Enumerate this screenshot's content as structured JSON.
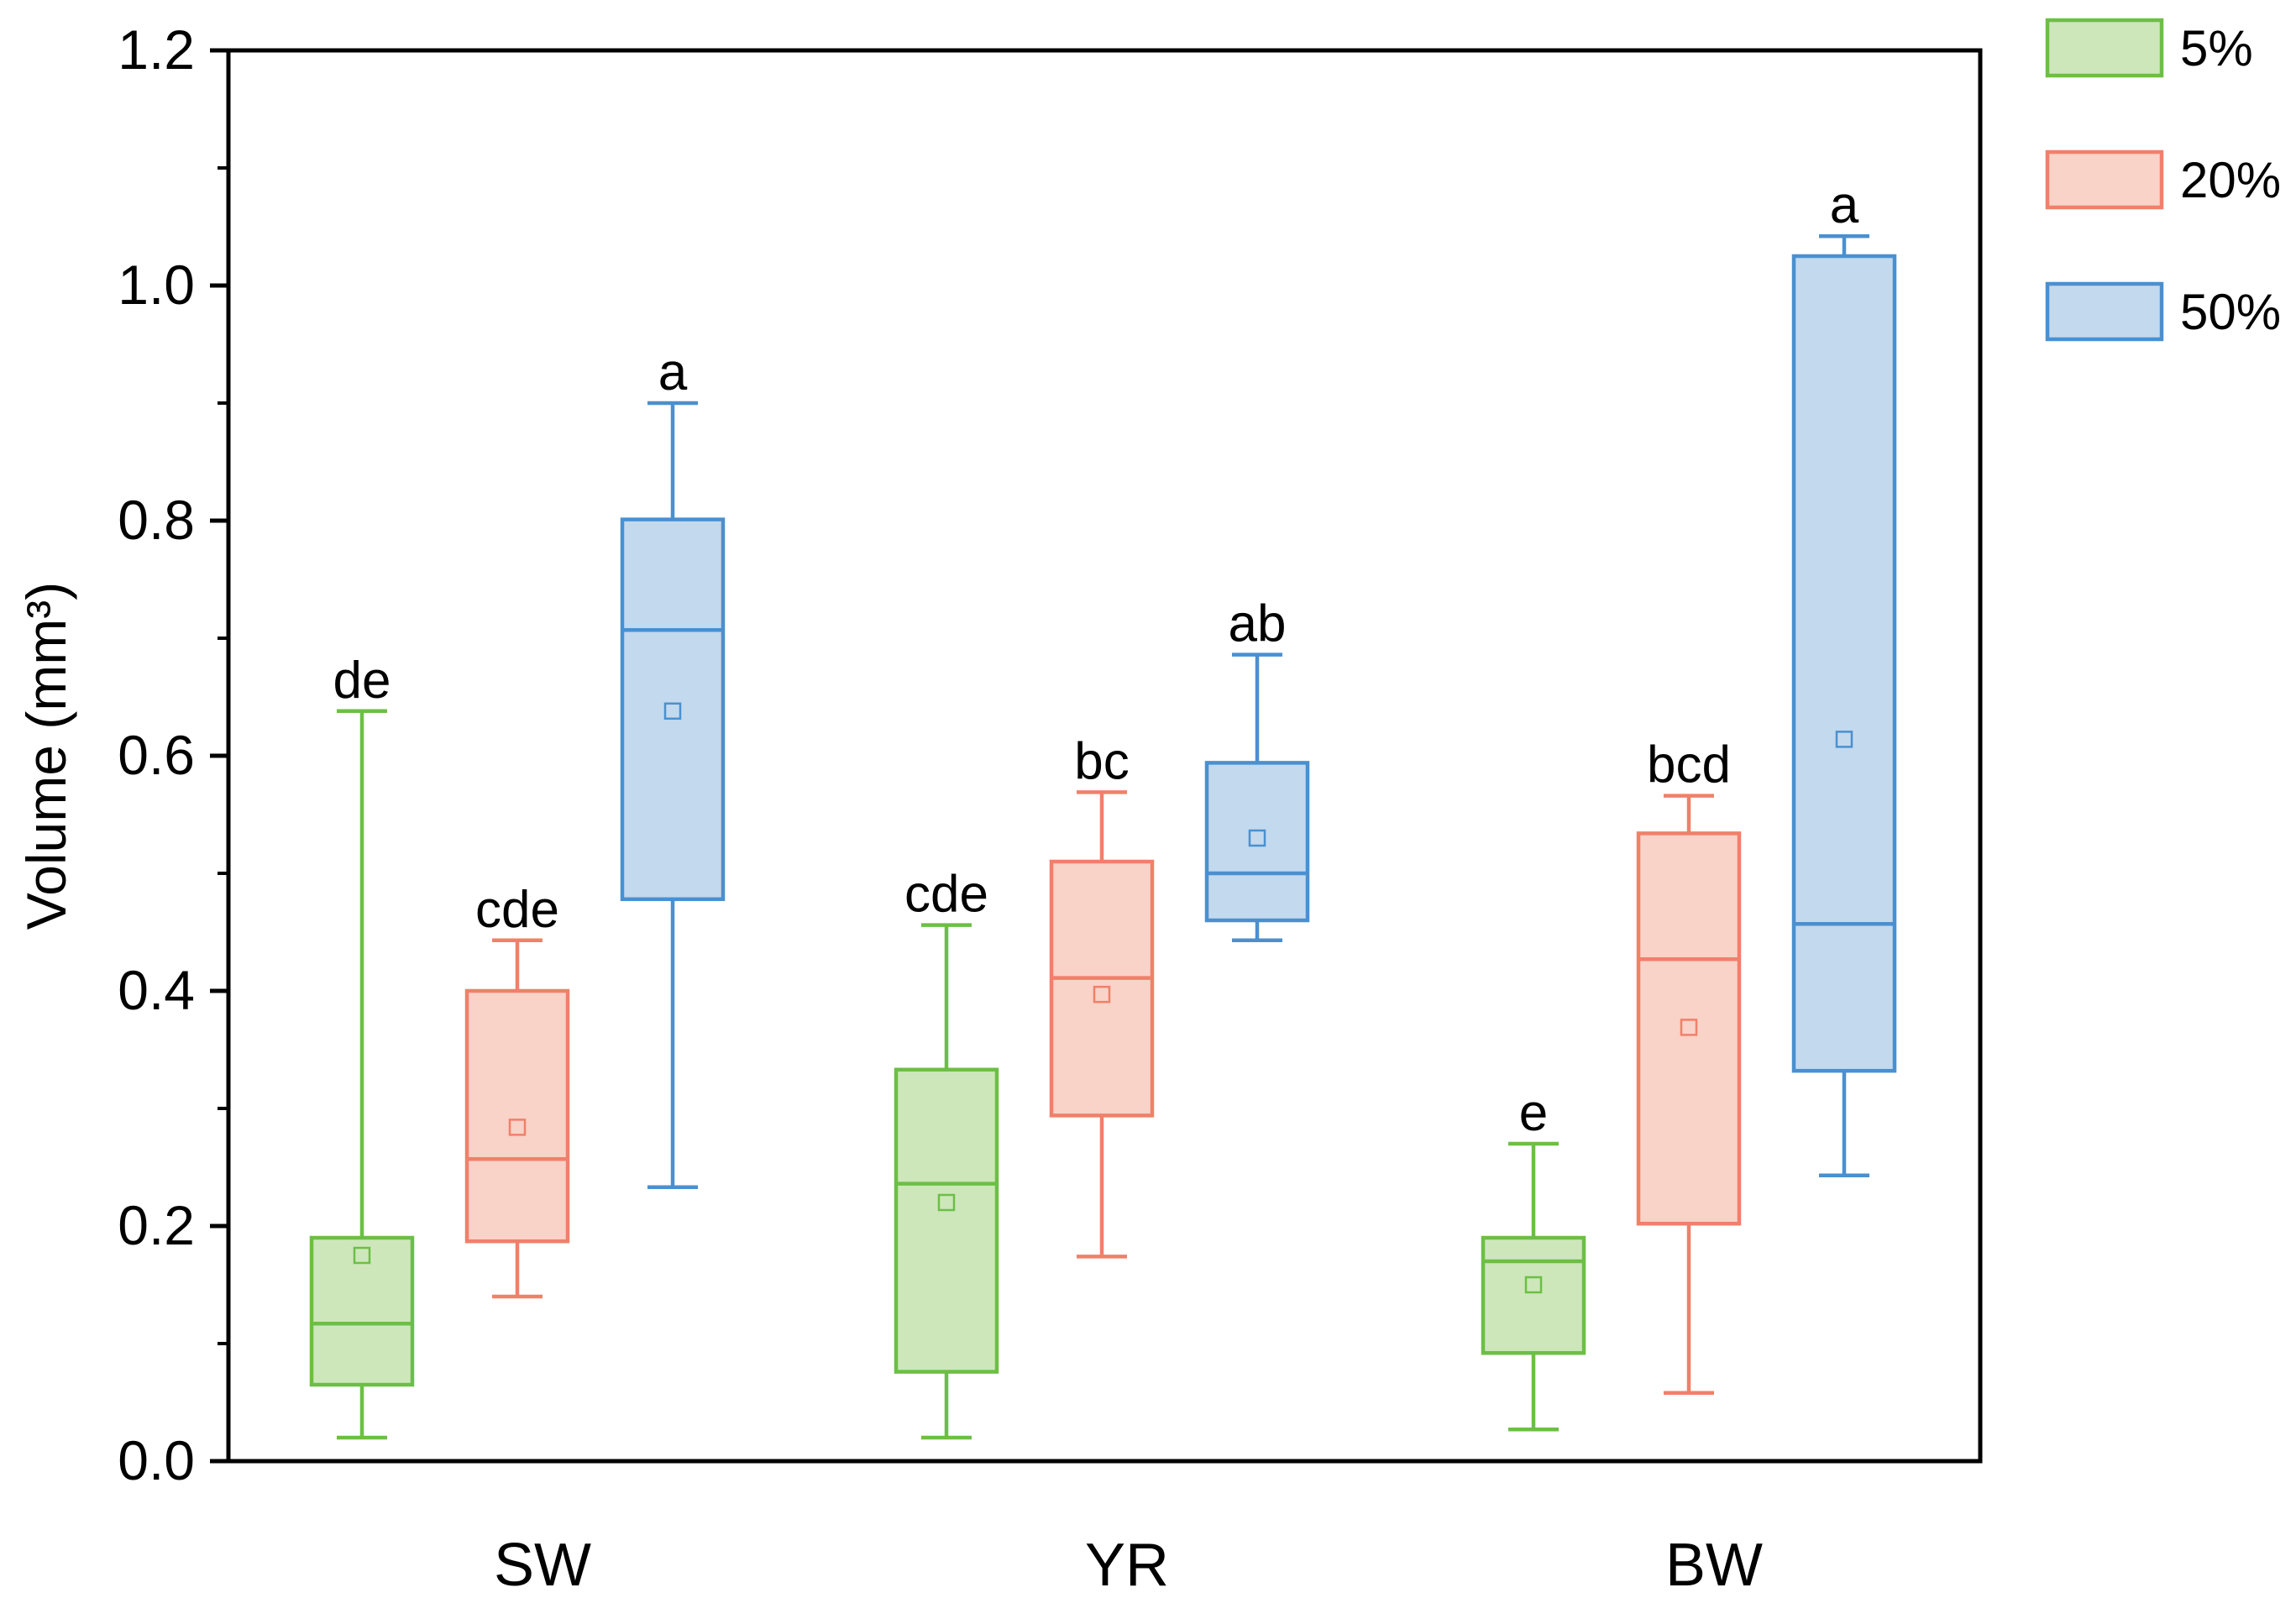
{
  "chart_data": {
    "type": "boxplot",
    "title": "",
    "xlabel": "",
    "ylabel": "Volume (mm³)",
    "ylim": [
      0.0,
      1.2
    ],
    "yticks": [
      "0.0",
      "0.2",
      "0.4",
      "0.6",
      "0.8",
      "1.0",
      "1.2"
    ],
    "grid": false,
    "legend_position": "top-right-outside",
    "categories": [
      "SW",
      "YR",
      "BW"
    ],
    "series": [
      {
        "name": "5%",
        "edge_color": "#6cbf45",
        "fill_color": "#cde7bb",
        "boxes": [
          {
            "category": "SW",
            "whisker_low": 0.02,
            "q1": 0.065,
            "median": 0.117,
            "q3": 0.19,
            "whisker_high": 0.638,
            "mean": 0.175,
            "letter": "de"
          },
          {
            "category": "YR",
            "whisker_low": 0.02,
            "q1": 0.076,
            "median": 0.236,
            "q3": 0.333,
            "whisker_high": 0.456,
            "mean": 0.22,
            "letter": "cde"
          },
          {
            "category": "BW",
            "whisker_low": 0.027,
            "q1": 0.092,
            "median": 0.17,
            "q3": 0.19,
            "whisker_high": 0.27,
            "mean": 0.15,
            "letter": "e"
          }
        ]
      },
      {
        "name": "20%",
        "edge_color": "#f0806a",
        "fill_color": "#f9d2c8",
        "boxes": [
          {
            "category": "SW",
            "whisker_low": 0.14,
            "q1": 0.187,
            "median": 0.257,
            "q3": 0.4,
            "whisker_high": 0.443,
            "mean": 0.284,
            "letter": "cde"
          },
          {
            "category": "YR",
            "whisker_low": 0.174,
            "q1": 0.294,
            "median": 0.411,
            "q3": 0.51,
            "whisker_high": 0.569,
            "mean": 0.397,
            "letter": "bc"
          },
          {
            "category": "BW",
            "whisker_low": 0.058,
            "q1": 0.202,
            "median": 0.427,
            "q3": 0.534,
            "whisker_high": 0.566,
            "mean": 0.369,
            "letter": "bcd"
          }
        ]
      },
      {
        "name": "50%",
        "edge_color": "#4a90d0",
        "fill_color": "#c3d9ee",
        "boxes": [
          {
            "category": "SW",
            "whisker_low": 0.233,
            "q1": 0.478,
            "median": 0.707,
            "q3": 0.801,
            "whisker_high": 0.9,
            "mean": 0.638,
            "letter": "a"
          },
          {
            "category": "YR",
            "whisker_low": 0.443,
            "q1": 0.46,
            "median": 0.5,
            "q3": 0.594,
            "whisker_high": 0.686,
            "mean": 0.53,
            "letter": "ab"
          },
          {
            "category": "BW",
            "whisker_low": 0.243,
            "q1": 0.332,
            "median": 0.457,
            "q3": 1.025,
            "whisker_high": 1.042,
            "mean": 0.614,
            "letter": "a"
          }
        ]
      }
    ]
  }
}
